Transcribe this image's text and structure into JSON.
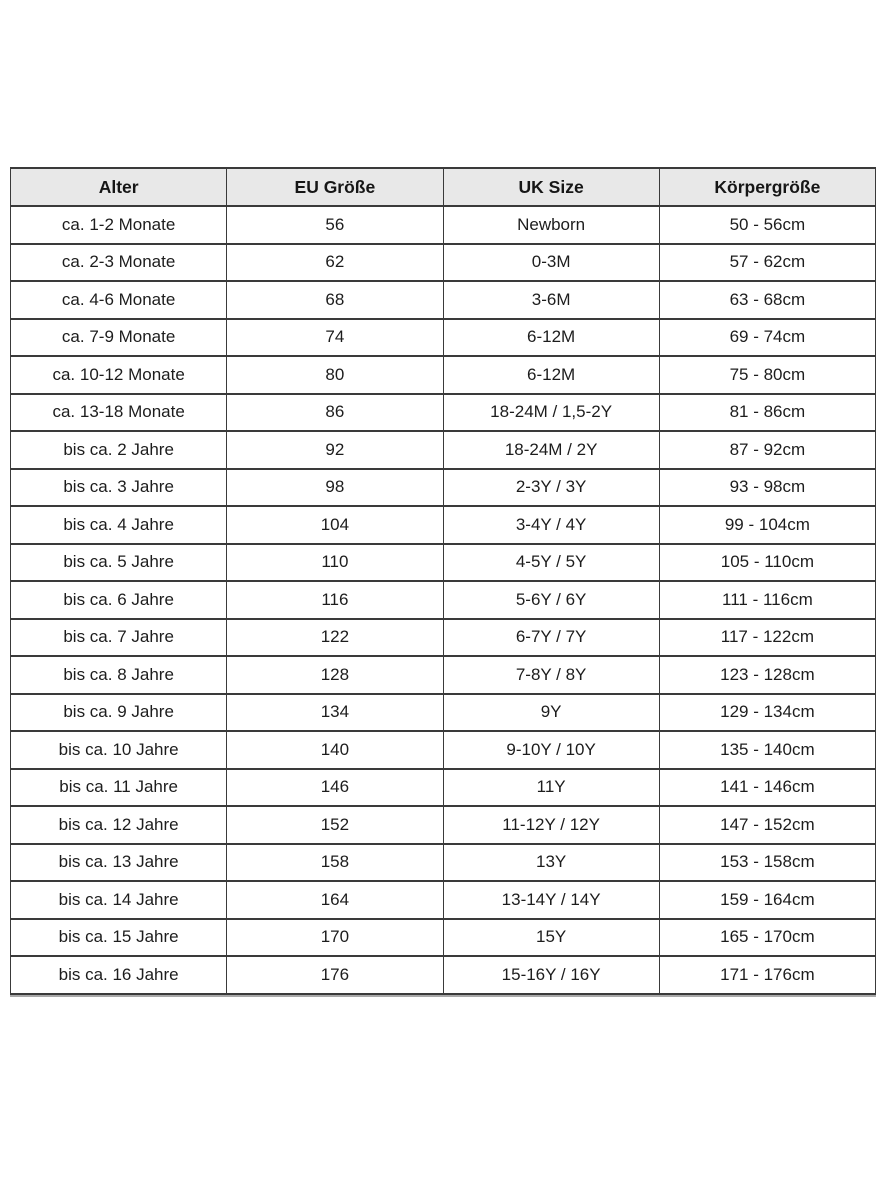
{
  "page": {
    "background": "#ffffff"
  },
  "table": {
    "name": "children-size-chart",
    "headers": [
      "Alter",
      "EU Größe",
      "UK Size",
      "Körpergröße"
    ],
    "rows": [
      [
        "ca. 1-2 Monate",
        "56",
        "Newborn",
        "50 - 56cm"
      ],
      [
        "ca. 2-3 Monate",
        "62",
        "0-3M",
        "57 - 62cm"
      ],
      [
        "ca. 4-6 Monate",
        "68",
        "3-6M",
        "63 - 68cm"
      ],
      [
        "ca. 7-9 Monate",
        "74",
        "6-12M",
        "69 - 74cm"
      ],
      [
        "ca. 10-12 Monate",
        "80",
        "6-12M",
        "75 - 80cm"
      ],
      [
        "ca. 13-18 Monate",
        "86",
        "18-24M / 1,5-2Y",
        "81 - 86cm"
      ],
      [
        "bis ca. 2 Jahre",
        "92",
        "18-24M / 2Y",
        "87 - 92cm"
      ],
      [
        "bis ca. 3 Jahre",
        "98",
        "2-3Y / 3Y",
        "93 - 98cm"
      ],
      [
        "bis ca. 4 Jahre",
        "104",
        "3-4Y / 4Y",
        "99 - 104cm"
      ],
      [
        "bis ca. 5 Jahre",
        "110",
        "4-5Y / 5Y",
        "105 - 110cm"
      ],
      [
        "bis ca. 6 Jahre",
        "116",
        "5-6Y / 6Y",
        "111 - 116cm"
      ],
      [
        "bis ca. 7 Jahre",
        "122",
        "6-7Y / 7Y",
        "117 - 122cm"
      ],
      [
        "bis ca. 8 Jahre",
        "128",
        "7-8Y / 8Y",
        "123 - 128cm"
      ],
      [
        "bis ca. 9 Jahre",
        "134",
        "9Y",
        "129 - 134cm"
      ],
      [
        "bis ca. 10 Jahre",
        "140",
        "9-10Y / 10Y",
        "135 - 140cm"
      ],
      [
        "bis ca. 11 Jahre",
        "146",
        "11Y",
        "141 - 146cm"
      ],
      [
        "bis ca. 12 Jahre",
        "152",
        "11-12Y / 12Y",
        "147 - 152cm"
      ],
      [
        "bis ca. 13 Jahre",
        "158",
        "13Y",
        "153 - 158cm"
      ],
      [
        "bis ca. 14 Jahre",
        "164",
        "13-14Y / 14Y",
        "159 - 164cm"
      ],
      [
        "bis ca. 15 Jahre",
        "170",
        "15Y",
        "165 - 170cm"
      ],
      [
        "bis ca. 16 Jahre",
        "176",
        "15-16Y / 16Y",
        "171 - 176cm"
      ]
    ],
    "colors": {
      "header_bg": "#e8e8e8",
      "border": "#3a3a3a",
      "text": "#1d1d1d"
    }
  }
}
